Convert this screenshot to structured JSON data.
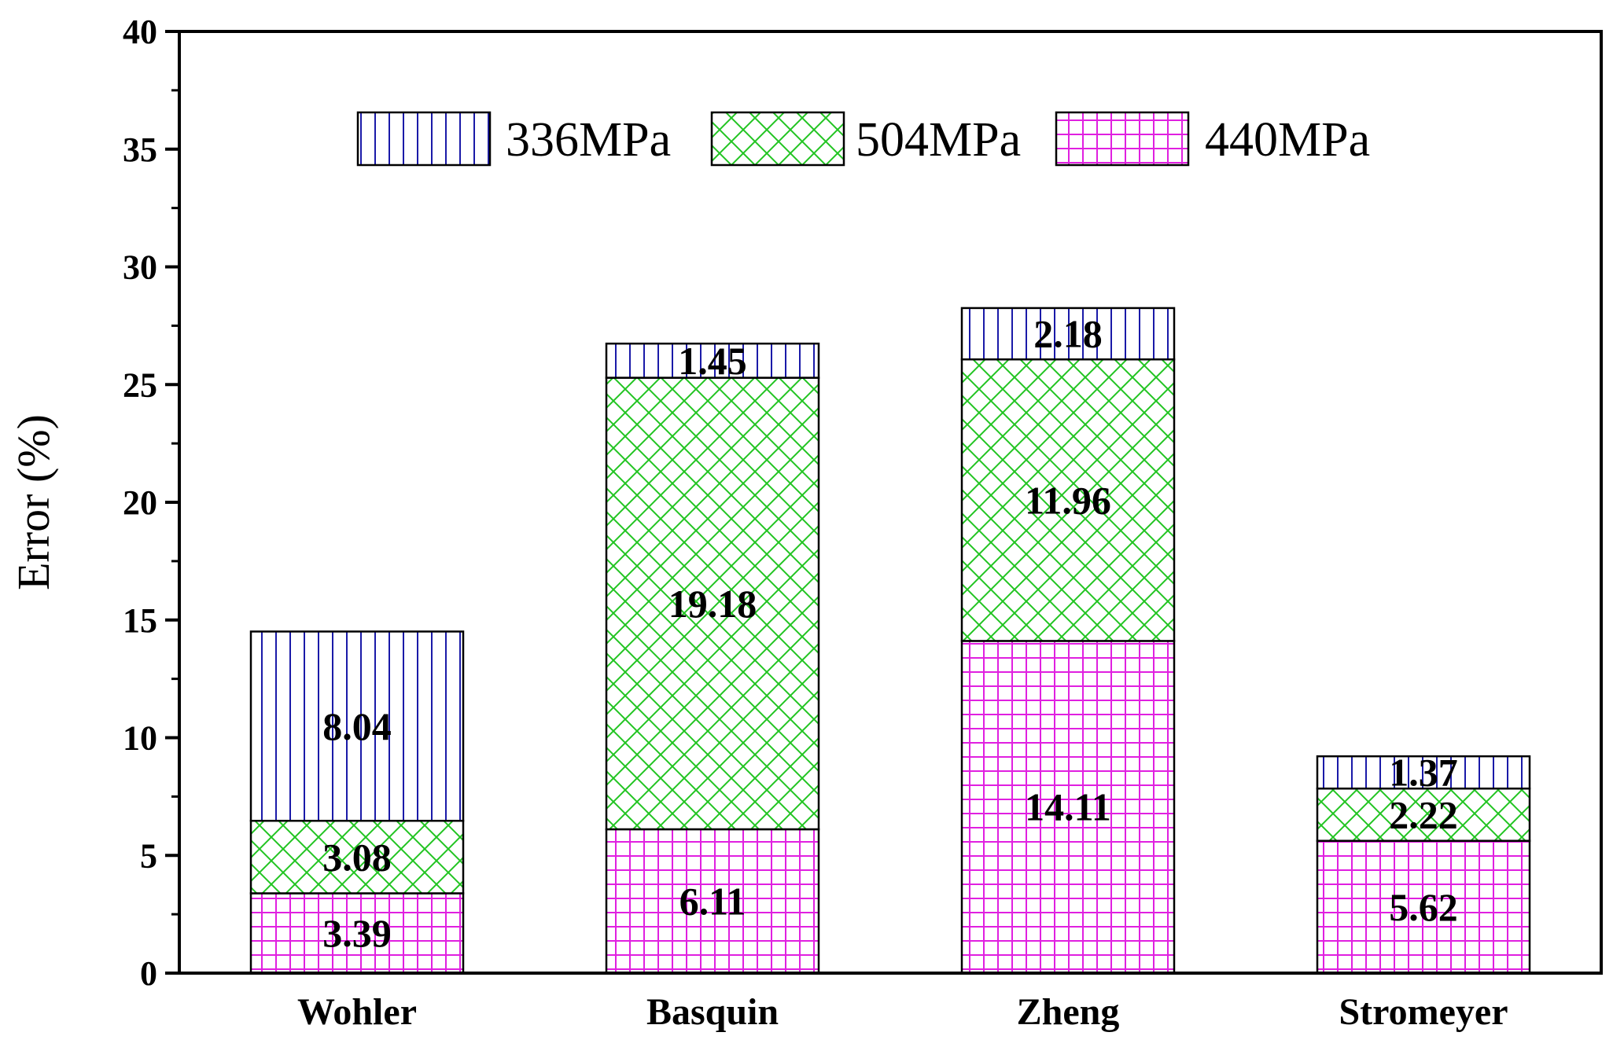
{
  "chart_data": {
    "type": "bar",
    "stacked": true,
    "categories": [
      "Wohler",
      "Basquin",
      "Zheng",
      "Stromeyer"
    ],
    "series": [
      {
        "name": "440MPa",
        "values": [
          3.39,
          6.11,
          14.11,
          5.62
        ],
        "labels": [
          "3.39",
          "6.11",
          "14.11",
          "5.62"
        ],
        "color": "#e020e0",
        "pattern": "grid"
      },
      {
        "name": "504MPa",
        "values": [
          3.08,
          19.18,
          11.96,
          2.22
        ],
        "labels": [
          "3.08",
          "19.18",
          "11.96",
          "2.22"
        ],
        "color": "#22c422",
        "pattern": "crosshatch"
      },
      {
        "name": "336MPa",
        "values": [
          8.04,
          1.45,
          2.18,
          1.37
        ],
        "labels": [
          "8.04",
          "1.45",
          "2.18",
          "1.37"
        ],
        "color": "#1a1aa8",
        "pattern": "vertical"
      }
    ],
    "legend_order": [
      "336MPa",
      "504MPa",
      "440MPa"
    ],
    "legend_position": "top-center",
    "title": "",
    "xlabel": "",
    "ylabel": "Error  (%)",
    "ylim": [
      0,
      40
    ],
    "yticks": [
      "0",
      "5",
      "10",
      "15",
      "20",
      "25",
      "30",
      "35",
      "40"
    ],
    "grid": false
  }
}
